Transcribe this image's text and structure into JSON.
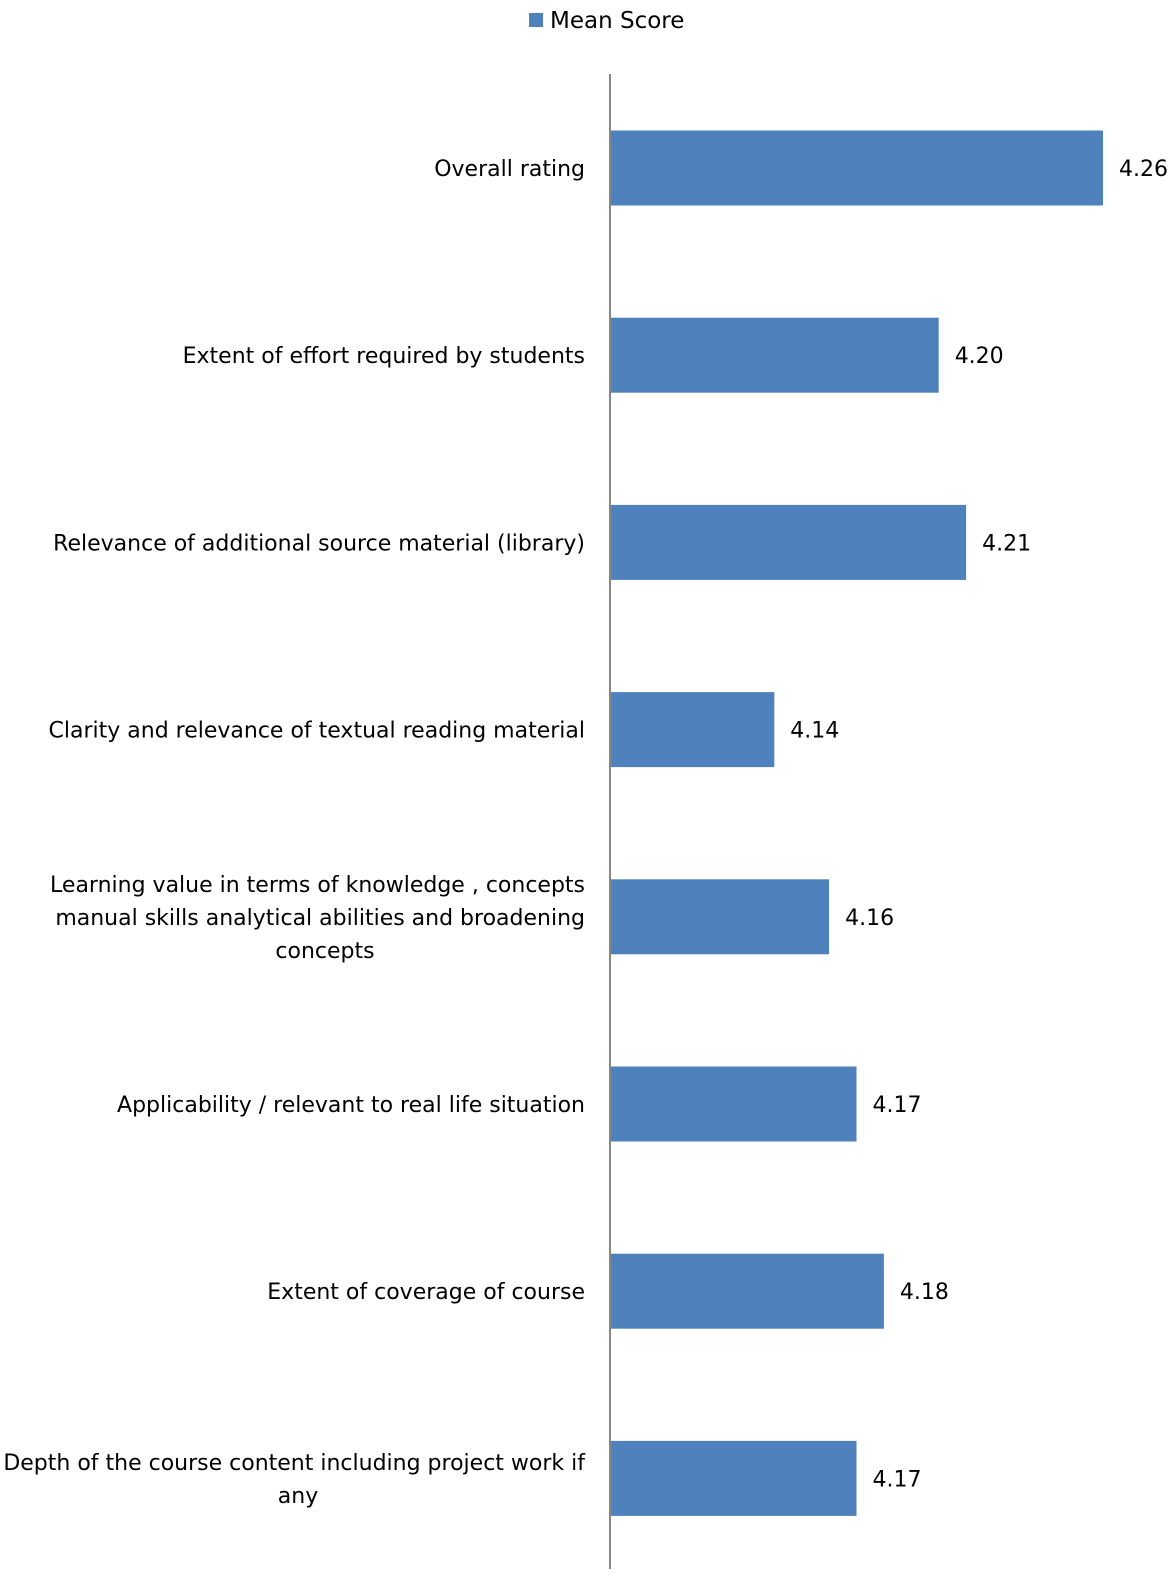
{
  "chart_data": {
    "type": "bar",
    "orientation": "horizontal",
    "categories": [
      "Overall rating",
      "Extent of effort required by students",
      "Relevance of additional source material (library)",
      "Clarity and relevance of textual reading material",
      "Learning value in terms of knowledge , concepts manual skills analytical abilities and broadening concepts",
      "Applicability / relevant to real life situation",
      "Extent of coverage of course",
      "Depth of the course content including project work if any"
    ],
    "category_lines": [
      [
        "Overall rating"
      ],
      [
        "Extent of effort required by students"
      ],
      [
        "Relevance of additional source material (library)"
      ],
      [
        "Clarity and relevance of textual reading material"
      ],
      [
        "Learning value in terms of knowledge , concepts",
        "manual skills analytical abilities and broadening",
        "concepts"
      ],
      [
        "Applicability / relevant to real life situation"
      ],
      [
        "Extent of coverage of course"
      ],
      [
        "Depth of the course content including project work if",
        "any"
      ]
    ],
    "series": [
      {
        "name": "Mean Score",
        "values": [
          4.26,
          4.2,
          4.21,
          4.14,
          4.16,
          4.17,
          4.18,
          4.17
        ],
        "labels": [
          "4.26",
          "4.20",
          "4.21",
          "4.14",
          "4.16",
          "4.17",
          "4.18",
          "4.17"
        ]
      }
    ],
    "xlim": [
      4.08,
      4.26
    ],
    "xaxis_visible": false,
    "grid": false,
    "legend_position": "top-center",
    "colors": {
      "bar": "#4f81bd",
      "axis": "#868686"
    }
  }
}
